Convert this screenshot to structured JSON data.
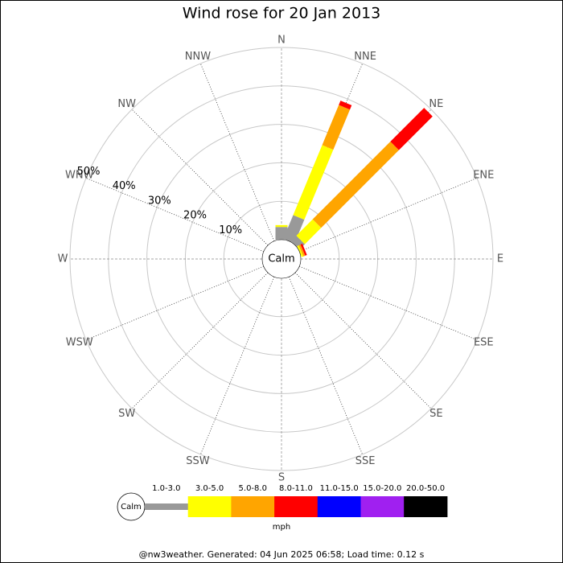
{
  "chart_data": {
    "type": "windrose",
    "title": "Wind rose for 20 Jan 2013",
    "categories": [
      "N",
      "NNE",
      "NE",
      "ENE",
      "E",
      "ESE",
      "SE",
      "SSE",
      "S",
      "SSW",
      "SW",
      "WSW",
      "W",
      "WNW",
      "NW",
      "NNW"
    ],
    "calm_label": "Calm",
    "unit": "mph",
    "footer": "@nw3weather. Generated: 04 Jun 2025 06:58; Load time: 0.12 s",
    "rlim": [
      0,
      50
    ],
    "rticks": [
      {
        "value": 10,
        "label": "10%"
      },
      {
        "value": 20,
        "label": "20%"
      },
      {
        "value": 30,
        "label": "30%"
      },
      {
        "value": 40,
        "label": "40%"
      },
      {
        "value": 50,
        "label": "50%"
      }
    ],
    "series": [
      {
        "name": "1.0-3.0",
        "color": "#999999",
        "values": [
          3.3,
          6.7,
          2,
          0,
          0,
          0,
          0,
          0,
          0,
          0,
          0,
          0,
          0,
          0,
          0,
          0
        ]
      },
      {
        "name": "3.0-5.0",
        "color": "#ffff00",
        "values": [
          0.5,
          19.7,
          6,
          0.5,
          0,
          0,
          0,
          0,
          0,
          0,
          0,
          0,
          0,
          0,
          0,
          0
        ]
      },
      {
        "name": "5.0-8.0",
        "color": "#ffa500",
        "values": [
          0,
          11.3,
          28.6,
          0.5,
          0,
          0,
          0,
          0,
          0,
          0,
          0,
          0,
          0,
          0,
          0,
          0
        ]
      },
      {
        "name": "8.0-11.0",
        "color": "#ff0000",
        "values": [
          0,
          1.2,
          12.4,
          0.5,
          0,
          0,
          0,
          0,
          0,
          0,
          0,
          0,
          0,
          0,
          0,
          0
        ]
      },
      {
        "name": "11.0-15.0",
        "color": "#0000ff",
        "values": [
          0,
          0,
          0,
          0,
          0,
          0,
          0,
          0,
          0,
          0,
          0,
          0,
          0,
          0,
          0,
          0
        ]
      },
      {
        "name": "15.0-20.0",
        "color": "#a020f0",
        "values": [
          0,
          0,
          0,
          0,
          0,
          0,
          0,
          0,
          0,
          0,
          0,
          0,
          0,
          0,
          0,
          0
        ]
      },
      {
        "name": "20.0-50.0",
        "color": "#000000",
        "values": [
          0,
          0,
          0,
          0,
          0,
          0,
          0,
          0,
          0,
          0,
          0,
          0,
          0,
          0,
          0,
          0
        ]
      }
    ]
  }
}
